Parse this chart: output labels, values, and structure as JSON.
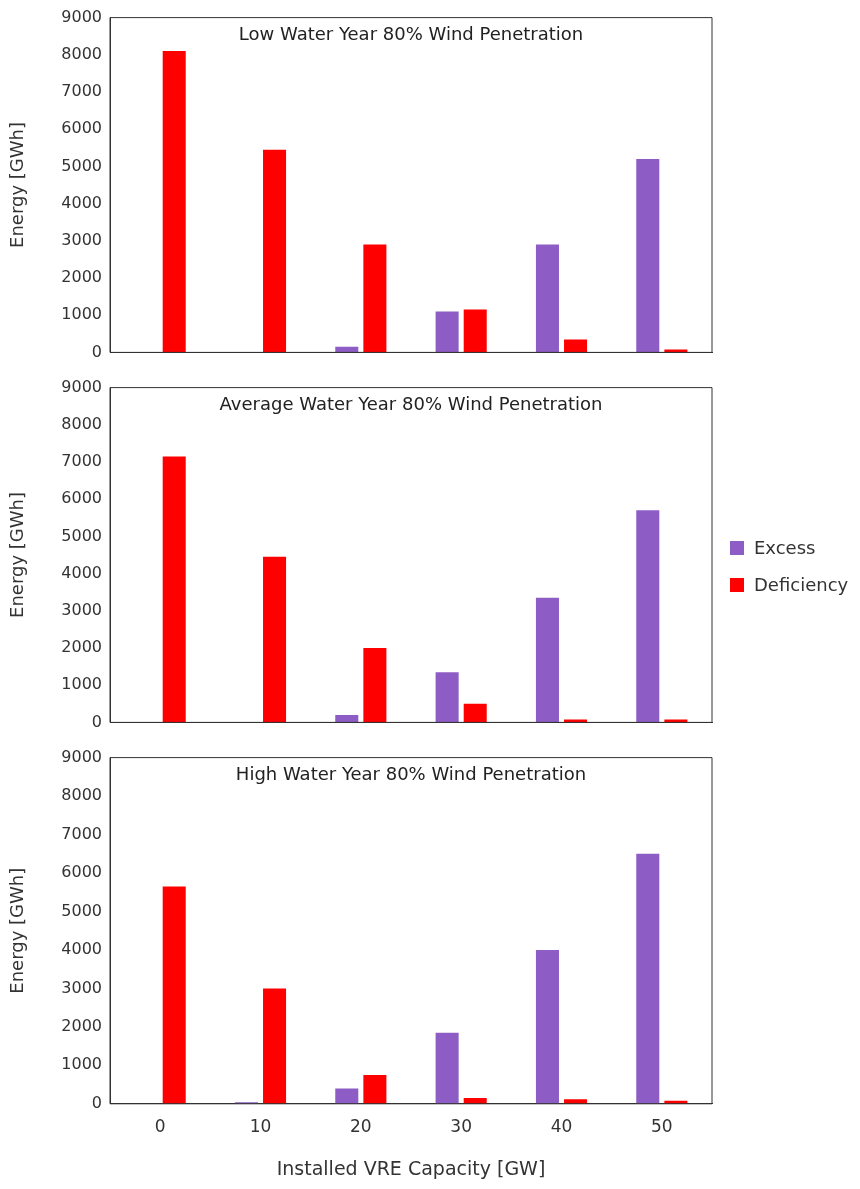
{
  "chart_data": [
    {
      "type": "bar",
      "title": "Low Water Year 80% Wind Penetration",
      "ylabel": "Energy [GWh]",
      "categories": [
        "0",
        "10",
        "20",
        "30",
        "40",
        "50"
      ],
      "series": [
        {
          "color": "#8d5cc4",
          "values": [
            0,
            0,
            150,
            1100,
            2900,
            5200
          ]
        },
        {
          "color": "#ff0000",
          "values": [
            8100,
            5450,
            2900,
            1150,
            350,
            80
          ]
        }
      ],
      "ylim": [
        0,
        9000
      ],
      "yticks": [
        0,
        1000,
        2000,
        3000,
        4000,
        5000,
        6000,
        7000,
        8000,
        9000
      ],
      "grid": false,
      "legend": false,
      "tick_labels": "y"
    },
    {
      "type": "bar",
      "title": "Average Water Year 80% Wind Penetration",
      "ylabel": "Energy [GWh]",
      "categories": [
        "0",
        "10",
        "20",
        "30",
        "40",
        "50"
      ],
      "series": [
        {
          "name": "Excess",
          "color": "#8d5cc4",
          "values": [
            0,
            0,
            200,
            1350,
            3350,
            5700
          ]
        },
        {
          "name": "Deficiency",
          "color": "#ff0000",
          "values": [
            7150,
            4450,
            2000,
            500,
            80,
            80
          ]
        }
      ],
      "ylim": [
        0,
        9000
      ],
      "yticks": [
        0,
        1000,
        2000,
        3000,
        4000,
        5000,
        6000,
        7000,
        8000,
        9000
      ],
      "grid": false,
      "legend": "right",
      "tick_labels": "y"
    },
    {
      "type": "bar",
      "title": "High Water Year 80% Wind Penetration",
      "ylabel": "Energy [GWh]",
      "xlabel": "Installed VRE Capacity [GW]",
      "categories": [
        "0",
        "10",
        "20",
        "30",
        "40",
        "50"
      ],
      "series": [
        {
          "color": "#8d5cc4",
          "values": [
            0,
            40,
            400,
            1850,
            4000,
            6500
          ]
        },
        {
          "color": "#ff0000",
          "values": [
            5650,
            3000,
            750,
            150,
            120,
            80
          ]
        }
      ],
      "ylim": [
        0,
        9000
      ],
      "yticks": [
        0,
        1000,
        2000,
        3000,
        4000,
        5000,
        6000,
        7000,
        8000,
        9000
      ],
      "grid": false,
      "legend": false
    }
  ]
}
